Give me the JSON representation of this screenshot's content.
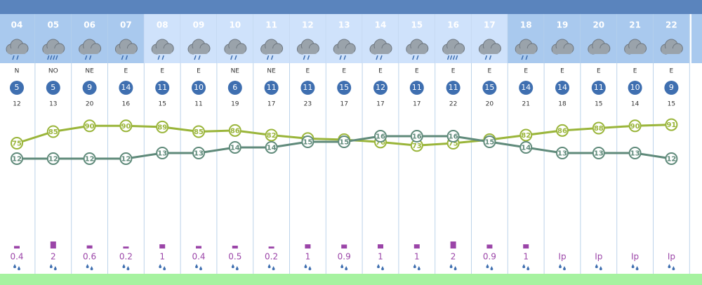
{
  "hours": [
    "04",
    "05",
    "06",
    "07",
    "08",
    "09",
    "10",
    "11",
    "12",
    "13",
    "14",
    "15",
    "16",
    "17",
    "18",
    "19",
    "20",
    "21",
    "22"
  ],
  "is_day": [
    false,
    false,
    false,
    false,
    true,
    true,
    true,
    true,
    true,
    true,
    true,
    true,
    true,
    true,
    false,
    false,
    false,
    false,
    false
  ],
  "sky": [
    "rain",
    "heavy-rain",
    "rain",
    "rain",
    "rain",
    "rain",
    "rain",
    "rain",
    "rain",
    "rain",
    "rain",
    "rain",
    "heavy-rain",
    "rain",
    "rain",
    "cloud",
    "cloud",
    "cloud",
    "cloud"
  ],
  "wind_direction": [
    "N",
    "NO",
    "NE",
    "E",
    "E",
    "E",
    "NE",
    "NE",
    "E",
    "E",
    "E",
    "E",
    "E",
    "E",
    "E",
    "E",
    "E",
    "E",
    "E"
  ],
  "wind_speed": [
    5,
    5,
    9,
    14,
    11,
    10,
    6,
    11,
    11,
    15,
    12,
    11,
    11,
    15,
    14,
    14,
    11,
    10,
    9
  ],
  "gusts": [
    12,
    13,
    20,
    16,
    15,
    11,
    19,
    17,
    23,
    17,
    17,
    17,
    22,
    20,
    21,
    18,
    15,
    14,
    15
  ],
  "humidity": {
    "color": "#9ab53a",
    "values": [
      75,
      85,
      90,
      90,
      89,
      85,
      86,
      82,
      79,
      78,
      76,
      73,
      75,
      78,
      82,
      86,
      88,
      90,
      91
    ]
  },
  "temperature": {
    "color": "#5f8a7a",
    "values": [
      12,
      12,
      12,
      12,
      13,
      13,
      14,
      14,
      15,
      15,
      16,
      16,
      16,
      15,
      14,
      13,
      13,
      13,
      12
    ]
  },
  "precipitation": {
    "color": "#9b45a8",
    "values": [
      0.4,
      2,
      0.6,
      0.2,
      1,
      0.4,
      0.5,
      0.2,
      1,
      0.9,
      1,
      1,
      2,
      0.9,
      1,
      "Ip",
      "Ip",
      "Ip",
      "Ip"
    ]
  }
}
